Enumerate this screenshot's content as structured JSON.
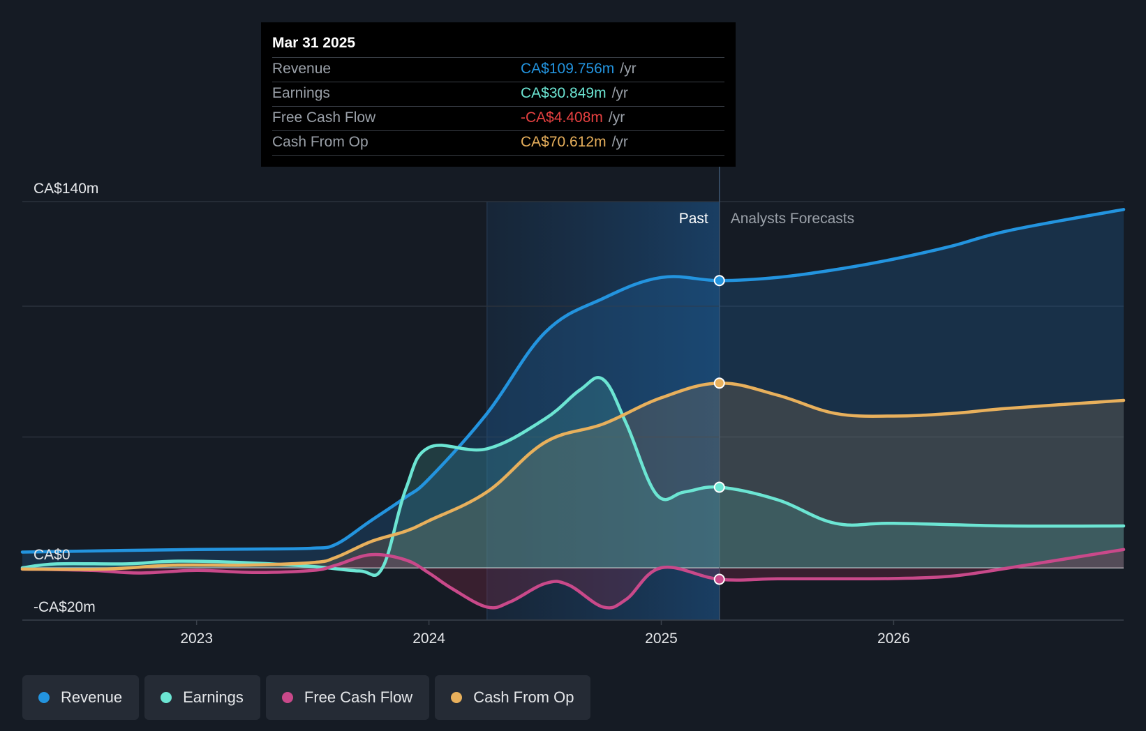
{
  "tooltip": {
    "date": "Mar 31 2025",
    "rows": [
      {
        "label": "Revenue",
        "value": "CA$109.756m",
        "unit": "/yr",
        "color": "#2394df"
      },
      {
        "label": "Earnings",
        "value": "CA$30.849m",
        "unit": "/yr",
        "color": "#6ce5d3"
      },
      {
        "label": "Free Cash Flow",
        "value": "-CA$4.408m",
        "unit": "/yr",
        "color": "#e84141"
      },
      {
        "label": "Cash From Op",
        "value": "CA$70.612m",
        "unit": "/yr",
        "color": "#e8b05c"
      }
    ]
  },
  "legend": [
    {
      "label": "Revenue",
      "color": "#2394df"
    },
    {
      "label": "Earnings",
      "color": "#6ce5d3"
    },
    {
      "label": "Free Cash Flow",
      "color": "#c9498a"
    },
    {
      "label": "Cash From Op",
      "color": "#e8b05c"
    }
  ],
  "chart_data": {
    "type": "line",
    "title": "",
    "past_label": "Past",
    "forecast_label": "Analysts Forecasts",
    "y_ticks": [
      {
        "value": 140,
        "label": "CA$140m"
      },
      {
        "value": 0,
        "label": "CA$0"
      },
      {
        "value": -20,
        "label": "-CA$20m"
      }
    ],
    "ylim": [
      -20,
      140
    ],
    "xlim": [
      2022.25,
      2026.99
    ],
    "x_ticks": [
      {
        "value": 2023,
        "label": "2023"
      },
      {
        "value": 2024,
        "label": "2024"
      },
      {
        "value": 2025,
        "label": "2025"
      },
      {
        "value": 2026,
        "label": "2026"
      }
    ],
    "highlight_start": 2024.25,
    "divider_x": 2025.25,
    "series": [
      {
        "name": "Revenue",
        "color": "#2394df",
        "points": [
          [
            2022.25,
            6
          ],
          [
            2022.6,
            6.5
          ],
          [
            2023,
            7
          ],
          [
            2023.3,
            7.2
          ],
          [
            2023.5,
            7.5
          ],
          [
            2023.6,
            9
          ],
          [
            2023.75,
            18
          ],
          [
            2023.9,
            27
          ],
          [
            2024,
            34
          ],
          [
            2024.25,
            59
          ],
          [
            2024.5,
            90
          ],
          [
            2024.75,
            103
          ],
          [
            2025,
            111
          ],
          [
            2025.25,
            109.8
          ],
          [
            2025.5,
            111
          ],
          [
            2025.75,
            114
          ],
          [
            2026,
            118
          ],
          [
            2026.25,
            123
          ],
          [
            2026.5,
            129
          ],
          [
            2026.99,
            137
          ]
        ]
      },
      {
        "name": "Earnings",
        "color": "#6ce5d3",
        "points": [
          [
            2022.25,
            0
          ],
          [
            2022.4,
            1.5
          ],
          [
            2022.7,
            1.5
          ],
          [
            2022.9,
            2.5
          ],
          [
            2023.2,
            2
          ],
          [
            2023.5,
            0.5
          ],
          [
            2023.7,
            -1.2
          ],
          [
            2023.8,
            0
          ],
          [
            2023.9,
            30
          ],
          [
            2024,
            46
          ],
          [
            2024.25,
            45.5
          ],
          [
            2024.5,
            57
          ],
          [
            2024.65,
            68
          ],
          [
            2024.75,
            72
          ],
          [
            2024.85,
            55
          ],
          [
            2024.98,
            28
          ],
          [
            2025.1,
            29
          ],
          [
            2025.25,
            30.8
          ],
          [
            2025.5,
            26
          ],
          [
            2025.75,
            17
          ],
          [
            2026,
            17
          ],
          [
            2026.5,
            16
          ],
          [
            2026.99,
            16
          ]
        ]
      },
      {
        "name": "Free Cash Flow",
        "color": "#c9498a",
        "points": [
          [
            2022.25,
            -0.5
          ],
          [
            2022.55,
            -1
          ],
          [
            2022.75,
            -2
          ],
          [
            2023,
            -1
          ],
          [
            2023.25,
            -1.8
          ],
          [
            2023.5,
            -1
          ],
          [
            2023.6,
            1
          ],
          [
            2023.75,
            5
          ],
          [
            2023.9,
            3
          ],
          [
            2024,
            -2
          ],
          [
            2024.1,
            -8
          ],
          [
            2024.25,
            -15
          ],
          [
            2024.35,
            -13
          ],
          [
            2024.5,
            -6
          ],
          [
            2024.6,
            -6.5
          ],
          [
            2024.75,
            -15
          ],
          [
            2024.85,
            -12
          ],
          [
            2025,
            0
          ],
          [
            2025.25,
            -4.4
          ],
          [
            2025.5,
            -4.2
          ],
          [
            2025.75,
            -4.2
          ],
          [
            2026,
            -4.1
          ],
          [
            2026.25,
            -3.2
          ],
          [
            2026.5,
            0
          ],
          [
            2026.99,
            7
          ]
        ]
      },
      {
        "name": "Cash From Op",
        "color": "#e8b05c",
        "points": [
          [
            2022.25,
            -0.5
          ],
          [
            2022.6,
            -0.5
          ],
          [
            2022.9,
            1
          ],
          [
            2023.2,
            1
          ],
          [
            2023.5,
            2
          ],
          [
            2023.6,
            4
          ],
          [
            2023.75,
            10
          ],
          [
            2023.9,
            14
          ],
          [
            2024,
            18
          ],
          [
            2024.25,
            29
          ],
          [
            2024.5,
            48
          ],
          [
            2024.75,
            55
          ],
          [
            2025,
            65
          ],
          [
            2025.25,
            70.6
          ],
          [
            2025.5,
            66
          ],
          [
            2025.75,
            59
          ],
          [
            2026,
            58
          ],
          [
            2026.25,
            59
          ],
          [
            2026.5,
            61
          ],
          [
            2026.99,
            64
          ]
        ]
      }
    ]
  }
}
